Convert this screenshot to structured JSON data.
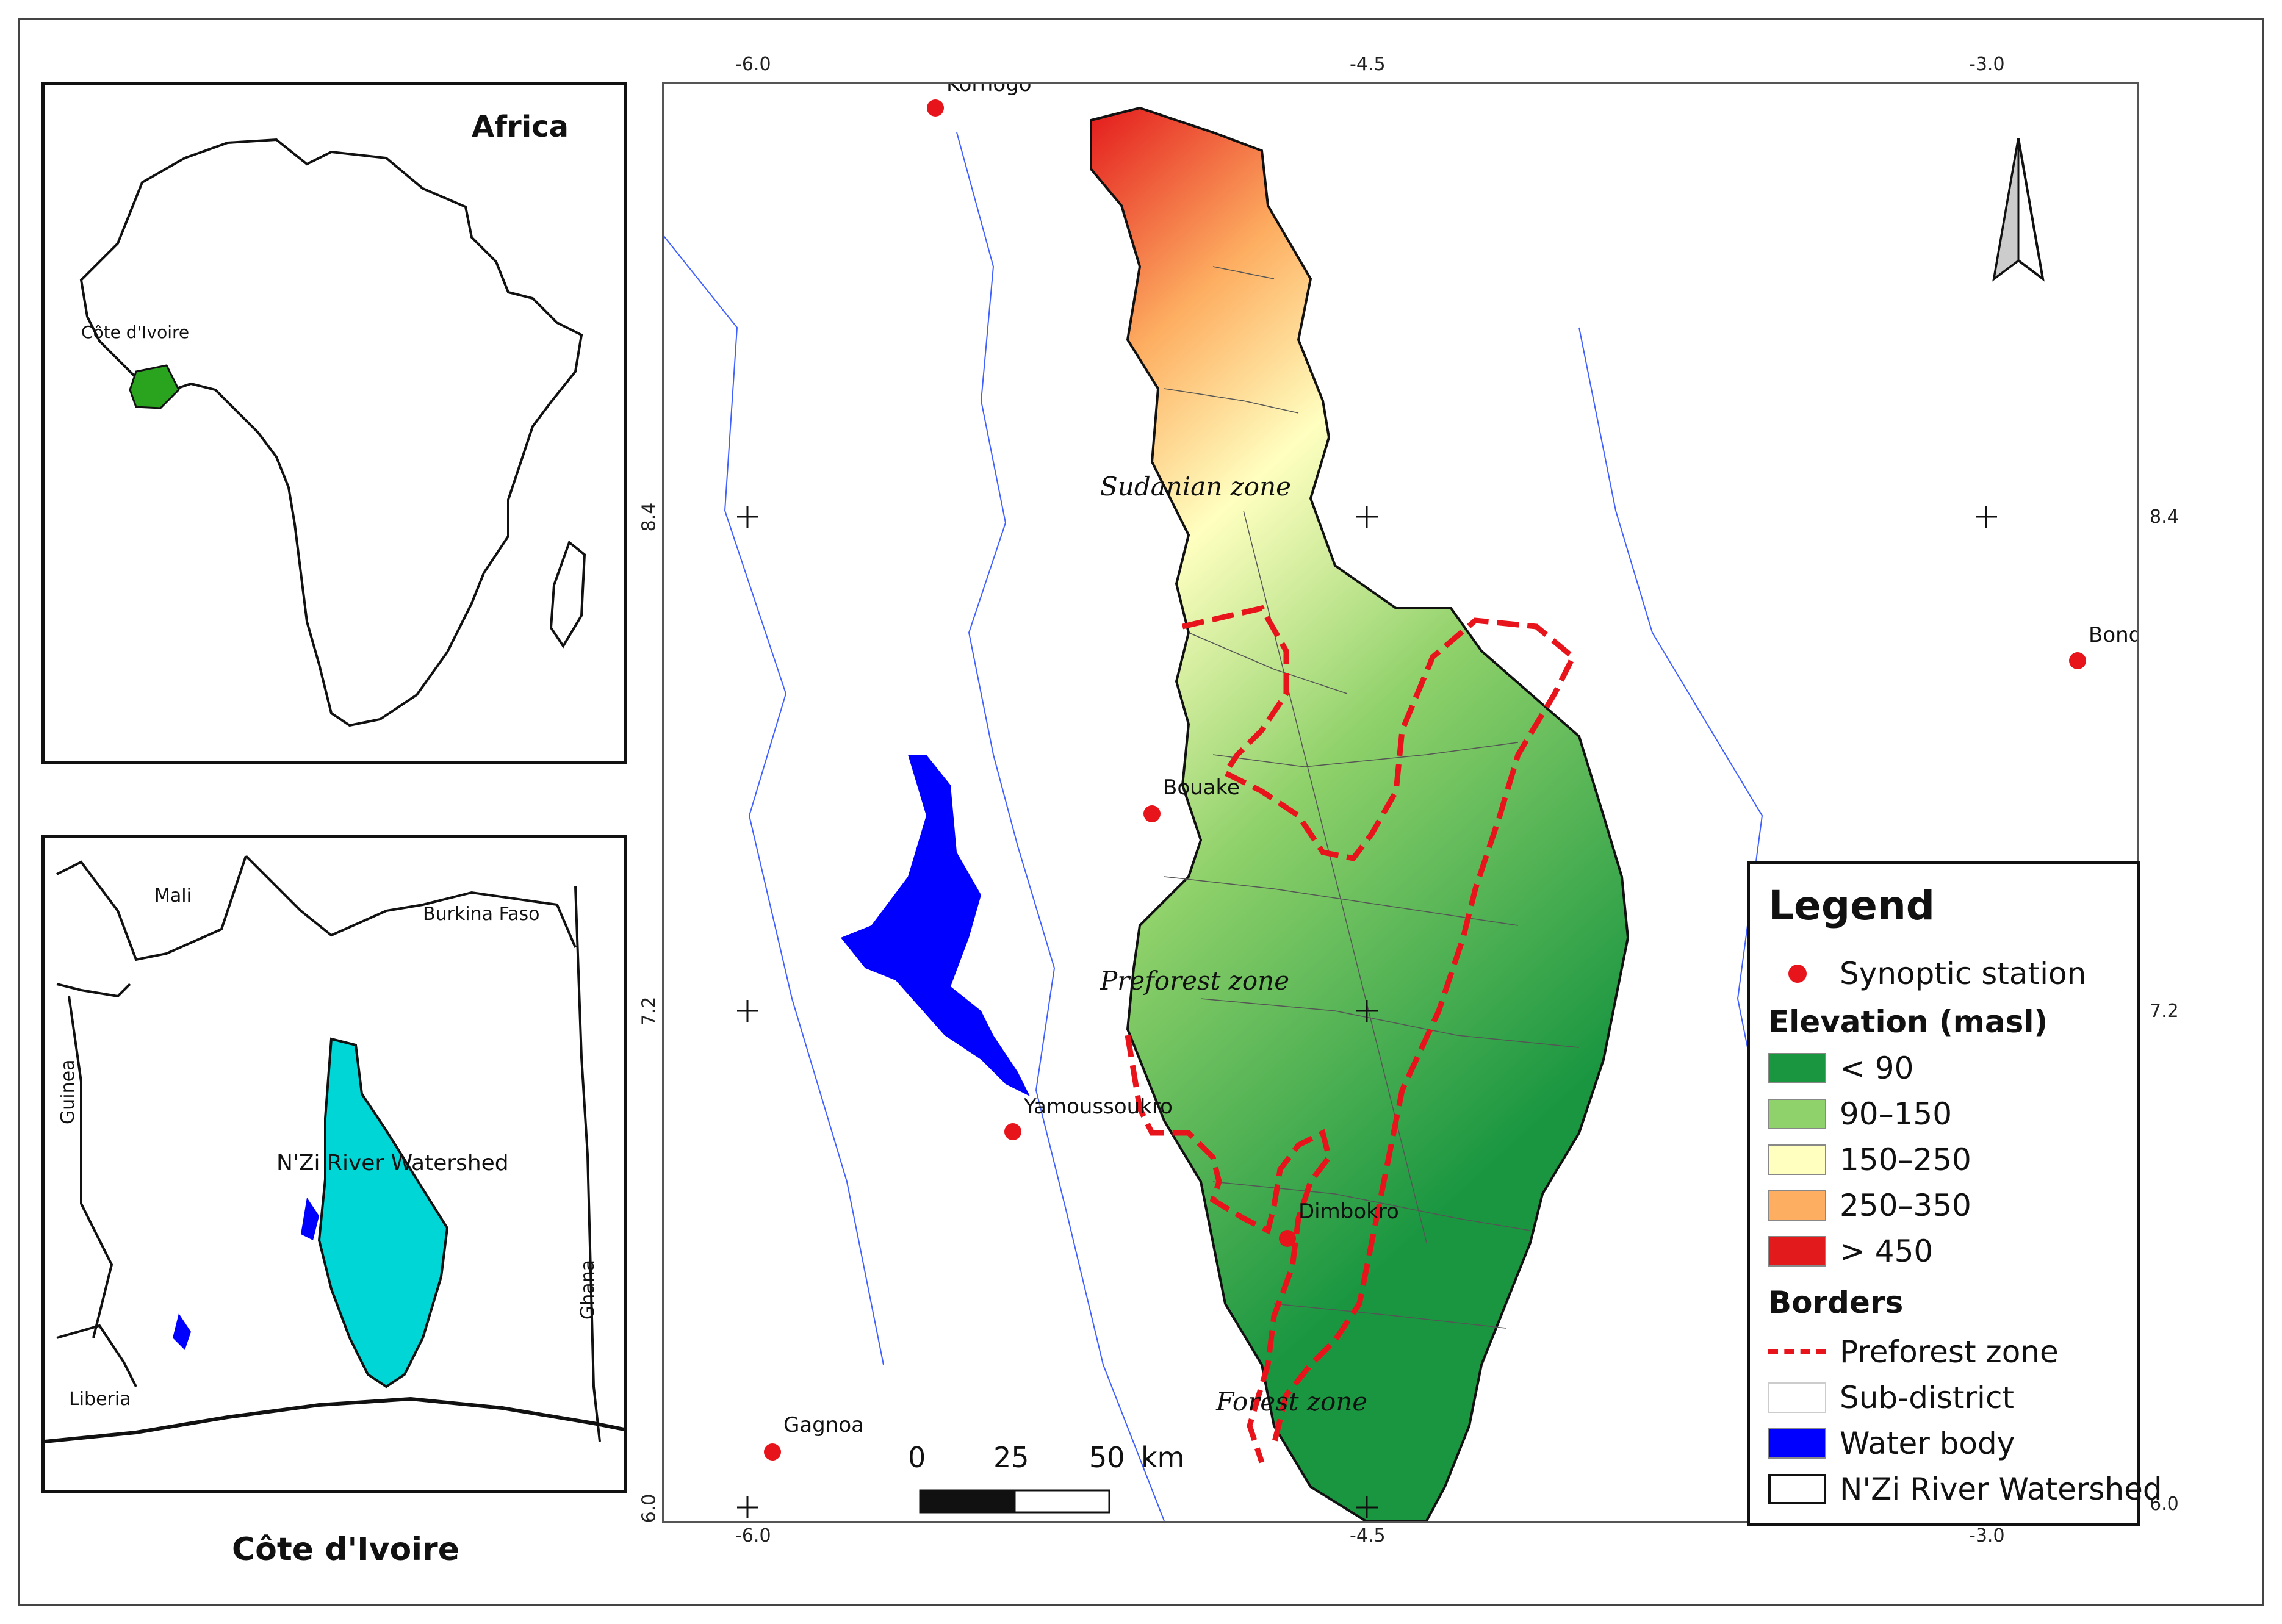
{
  "africa_inset": {
    "title": "Africa",
    "country_label": "Côte d'Ivoire"
  },
  "civ_inset": {
    "watershed_label": "N'Zi River Watershed",
    "countries": {
      "mali": "Mali",
      "burkina": "Burkina Faso",
      "guinea": "Guinea",
      "liberia": "Liberia",
      "ghana": "Ghana"
    },
    "caption": "Côte d'Ivoire"
  },
  "main_map": {
    "zones": {
      "sudanian": "Sudanian zone",
      "preforest": "Preforest zone",
      "forest": "Forest zone"
    },
    "stations": {
      "korhogo": "Korhogo",
      "bouake": "Bouake",
      "yamoussoukro": "Yamoussoukro",
      "dimbokro": "Dimbokro",
      "gagnoa": "Gagnoa",
      "bondoukou": "Bond"
    },
    "ticks": {
      "lon_top": [
        "-6.0",
        "-4.5",
        "-3.0"
      ],
      "lon_bottom": [
        "-6.0",
        "-4.5",
        "-3.0"
      ],
      "lat_left": [
        "8.4",
        "7.2",
        "6.0"
      ],
      "lat_right": [
        "8.4",
        "7.2",
        "6.0"
      ]
    },
    "scale": {
      "labels": [
        "0",
        "25",
        "50"
      ],
      "unit": "km"
    }
  },
  "legend": {
    "title": "Legend",
    "synoptic_station": "Synoptic station",
    "elevation_heading": "Elevation (masl)",
    "elevation_classes": [
      {
        "label": "< 90",
        "color": "#1a9641"
      },
      {
        "label": "90–150",
        "color": "#8fd16a"
      },
      {
        "label": "150–250",
        "color": "#ffffc0"
      },
      {
        "label": "250–350",
        "color": "#fdae61"
      },
      {
        "label": "> 450",
        "color": "#e31a1c"
      }
    ],
    "borders_heading": "Borders",
    "borders": [
      {
        "label": "Preforest zone",
        "kind": "dashed-red"
      },
      {
        "label": "Sub-district",
        "kind": "thin-gray"
      },
      {
        "label": "Water body",
        "kind": "blue-fill"
      },
      {
        "label": "N'Zi River Watershed",
        "kind": "black-outline"
      }
    ]
  },
  "colors": {
    "station": "#e8141b",
    "water": "#0000ff",
    "preforest_border": "#e8141b",
    "watershed_inset": "#00d6d6",
    "civ_highlight": "#2aa31f"
  }
}
